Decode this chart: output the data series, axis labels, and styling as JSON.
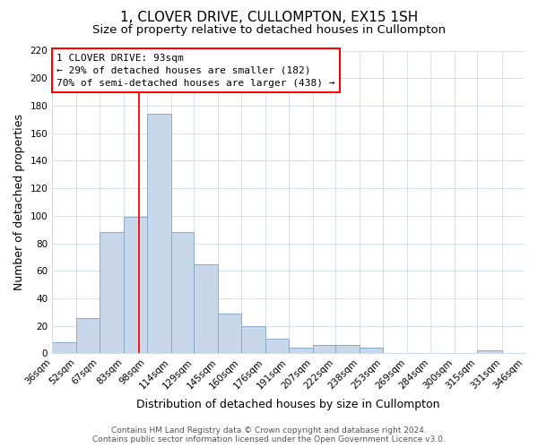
{
  "title": "1, CLOVER DRIVE, CULLOMPTON, EX15 1SH",
  "subtitle": "Size of property relative to detached houses in Cullompton",
  "xlabel": "Distribution of detached houses by size in Cullompton",
  "ylabel": "Number of detached properties",
  "bin_edges": [
    36,
    52,
    67,
    83,
    98,
    114,
    129,
    145,
    160,
    176,
    191,
    207,
    222,
    238,
    253,
    269,
    284,
    300,
    315,
    331,
    346
  ],
  "bar_heights": [
    8,
    26,
    88,
    99,
    174,
    88,
    65,
    29,
    20,
    11,
    4,
    6,
    6,
    4,
    0,
    0,
    0,
    0,
    2,
    0
  ],
  "bar_color": "#c8d8ea",
  "bar_edge_color": "#88aac8",
  "bar_edge_width": 0.7,
  "red_line_x": 93,
  "ylim": [
    0,
    220
  ],
  "yticks": [
    0,
    20,
    40,
    60,
    80,
    100,
    120,
    140,
    160,
    180,
    200,
    220
  ],
  "annotation_line1": "1 CLOVER DRIVE: 93sqm",
  "annotation_line2": "← 29% of detached houses are smaller (182)",
  "annotation_line3": "70% of semi-detached houses are larger (438) →",
  "footer_line1": "Contains HM Land Registry data © Crown copyright and database right 2024.",
  "footer_line2": "Contains public sector information licensed under the Open Government Licence v3.0.",
  "background_color": "#ffffff",
  "grid_color": "#d0dce8",
  "title_fontsize": 11,
  "subtitle_fontsize": 9.5,
  "axis_label_fontsize": 9,
  "tick_fontsize": 7.5,
  "annotation_fontsize": 8,
  "footer_fontsize": 6.5
}
